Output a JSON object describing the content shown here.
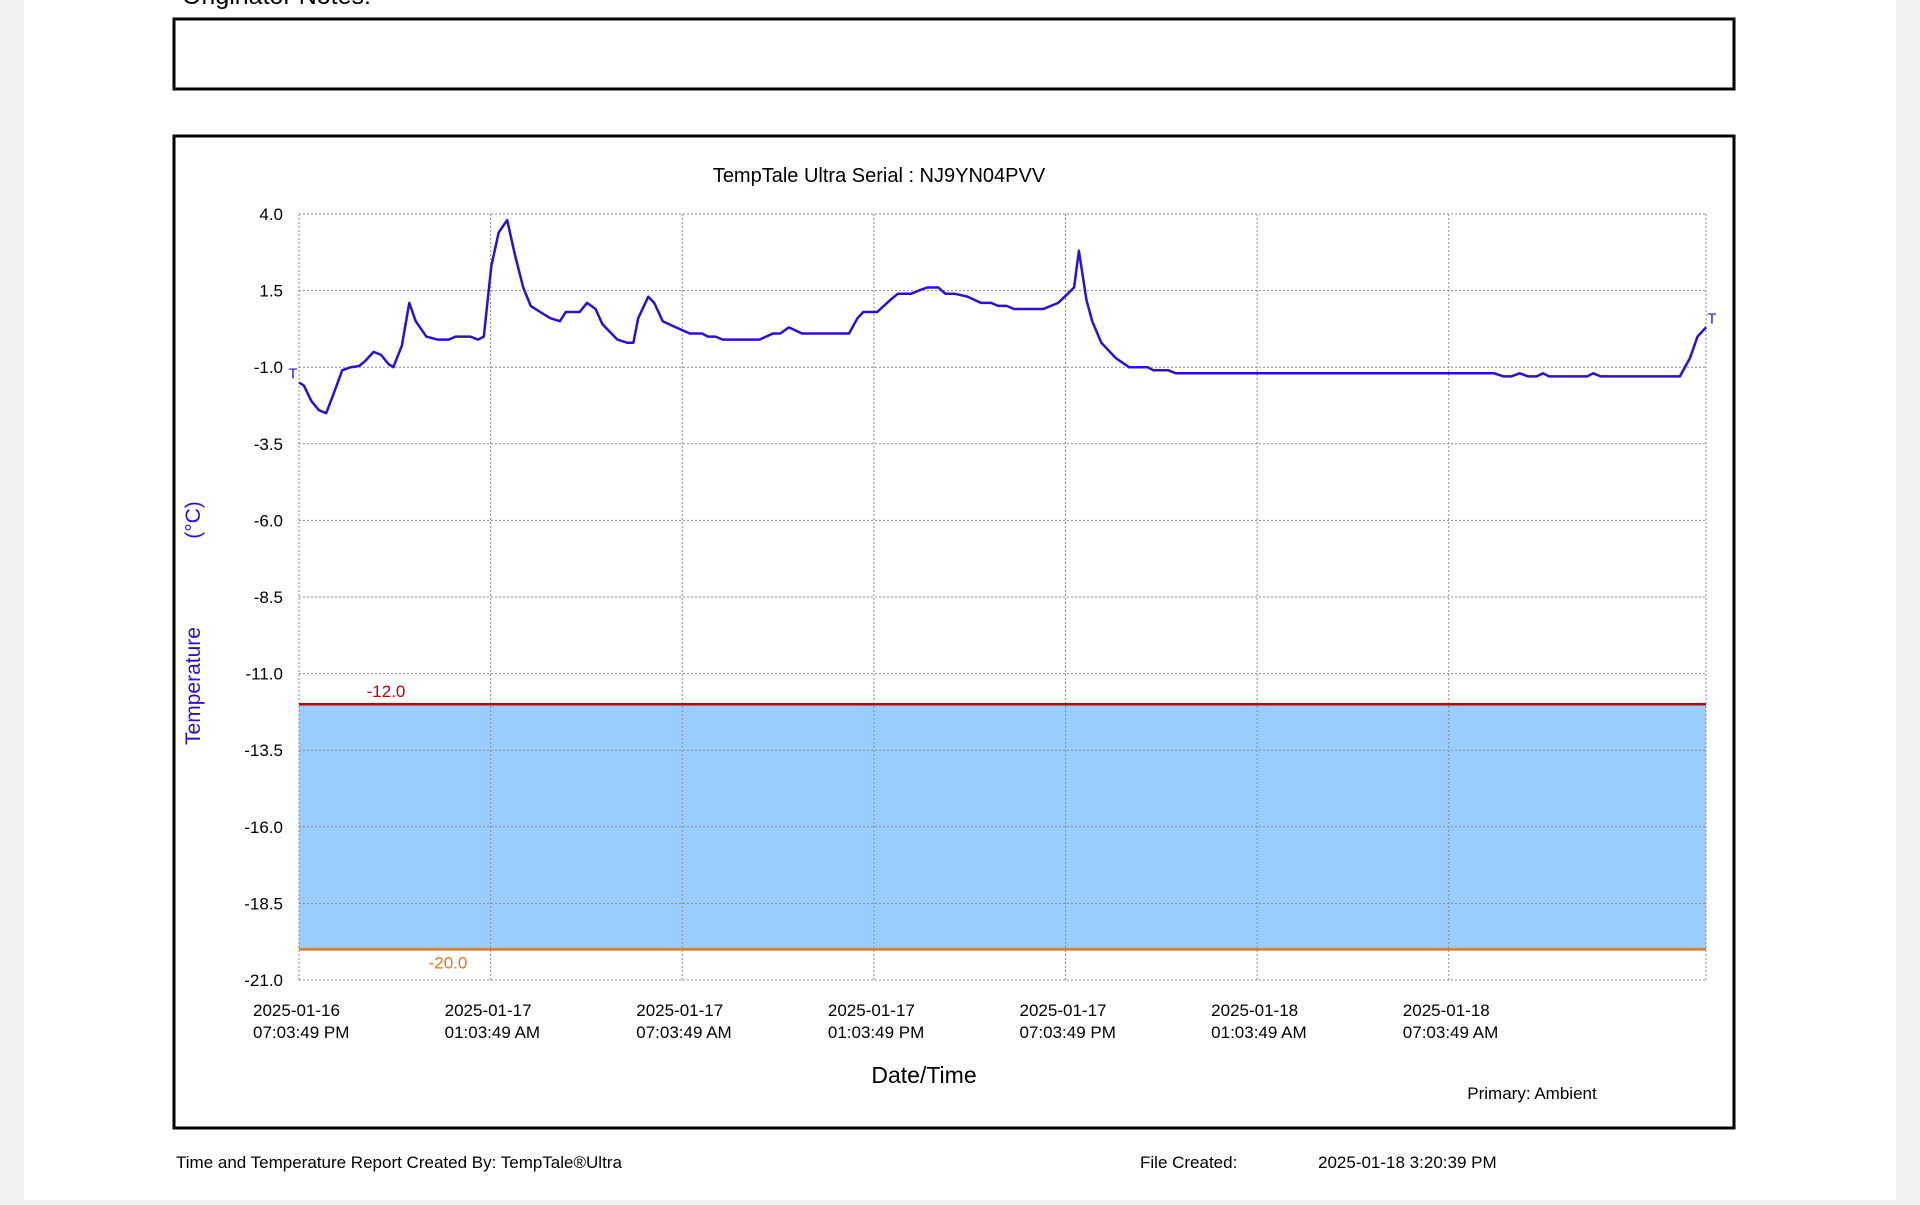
{
  "header": {
    "notes_label": "Originator Notes:"
  },
  "chart_data": {
    "type": "line",
    "title": "TempTale Ultra  Serial : NJ9YN04PVV",
    "y_label": "Temperature",
    "y_unit": "(°C)",
    "x_label": "Date/Time",
    "legend": "Primary: Ambient",
    "grid": true,
    "xlim": [
      "2025-01-16T19:03:49",
      "2025-01-18T15:07"
    ],
    "xticks": [
      {
        "value": "2025-01-16T19:03:49",
        "label": "2025-01-16 07:03:49 PM"
      },
      {
        "value": "2025-01-17T01:03:49",
        "label": "2025-01-17 01:03:49 AM"
      },
      {
        "value": "2025-01-17T07:03:49",
        "label": "2025-01-17 07:03:49 AM"
      },
      {
        "value": "2025-01-17T13:03:49",
        "label": "2025-01-17 01:03:49 PM"
      },
      {
        "value": "2025-01-17T19:03:49",
        "label": "2025-01-17 07:03:49 PM"
      },
      {
        "value": "2025-01-18T01:03:49",
        "label": "2025-01-18 01:03:49 AM"
      },
      {
        "value": "2025-01-18T07:03:49",
        "label": "2025-01-18 07:03:49 AM"
      }
    ],
    "ylim": [
      -21,
      4
    ],
    "yticks": [
      {
        "value": 4,
        "label": "4.0"
      },
      {
        "value": 1.5,
        "label": "1.5"
      },
      {
        "value": -1,
        "label": "-1.0"
      },
      {
        "value": -3.5,
        "label": "-3.5"
      },
      {
        "value": -6,
        "label": "-6.0"
      },
      {
        "value": -8.5,
        "label": "-8.5"
      },
      {
        "value": -11,
        "label": "-11.0"
      },
      {
        "value": -13.5,
        "label": "-13.5"
      },
      {
        "value": -16,
        "label": "-16.0"
      },
      {
        "value": -18.5,
        "label": "-18.5"
      },
      {
        "value": -21,
        "label": "-21.0"
      }
    ],
    "limits": [
      {
        "value": -12,
        "label": "-12.0",
        "color": "#c00000"
      },
      {
        "value": -20,
        "label": "-20.0",
        "color": "#e8761e"
      }
    ],
    "band_color": "#99ccff",
    "trip_markers": {
      "start": "T",
      "end": "T"
    },
    "series": [
      {
        "color": "#2b0fd6",
        "x": [
          "2025-01-16T19:03:49",
          "2025-01-16T19:13",
          "2025-01-16T19:27",
          "2025-01-16T19:41",
          "2025-01-16T19:55",
          "2025-01-16T20:08",
          "2025-01-16T20:25",
          "2025-01-16T20:41",
          "2025-01-16T20:57",
          "2025-01-16T21:08",
          "2025-01-16T21:24",
          "2025-01-16T21:38",
          "2025-01-16T21:52",
          "2025-01-16T22:01",
          "2025-01-16T22:17",
          "2025-01-16T22:31",
          "2025-01-16T22:43",
          "2025-01-16T23:03",
          "2025-01-16T23:24",
          "2025-01-16T23:45",
          "2025-01-16T23:58",
          "2025-01-17T00:26",
          "2025-01-17T00:40",
          "2025-01-17T00:51",
          "2025-01-17T01:05",
          "2025-01-17T01:19",
          "2025-01-17T01:35",
          "2025-01-17T01:49",
          "2025-01-17T02:05",
          "2025-01-17T02:19",
          "2025-01-17T02:37",
          "2025-01-17T02:56",
          "2025-01-17T03:14",
          "2025-01-17T03:25",
          "2025-01-17T03:51",
          "2025-01-17T04:05",
          "2025-01-17T04:21",
          "2025-01-17T04:34",
          "2025-01-17T05:02",
          "2025-01-17T05:20",
          "2025-01-17T05:32",
          "2025-01-17T05:41",
          "2025-01-17T06:00",
          "2025-01-17T06:11",
          "2025-01-17T06:27",
          "2025-01-17T06:52",
          "2025-01-17T07:18",
          "2025-01-17T07:41",
          "2025-01-17T07:52",
          "2025-01-17T08:06",
          "2025-01-17T08:20",
          "2025-01-17T09:29",
          "2025-01-17T09:54",
          "2025-01-17T10:08",
          "2025-01-17T10:24",
          "2025-01-17T10:49",
          "2025-01-17T12:17",
          "2025-01-17T12:33",
          "2025-01-17T12:44",
          "2025-01-17T13:10",
          "2025-01-17T13:35",
          "2025-01-17T13:49",
          "2025-01-17T14:14",
          "2025-01-17T14:28",
          "2025-01-17T14:44",
          "2025-01-17T15:05",
          "2025-01-17T15:18",
          "2025-01-17T15:35",
          "2025-01-17T16:00",
          "2025-01-17T16:25",
          "2025-01-17T16:44",
          "2025-01-17T16:57",
          "2025-01-17T17:13",
          "2025-01-17T17:27",
          "2025-01-17T18:22",
          "2025-01-17T18:50",
          "2025-01-17T19:08",
          "2025-01-17T19:20",
          "2025-01-17T19:29",
          "2025-01-17T19:43",
          "2025-01-17T19:54",
          "2025-01-17T20:11",
          "2025-01-17T20:38",
          "2025-01-17T21:03",
          "2025-01-17T21:38",
          "2025-01-17T21:49",
          "2025-01-17T22:17",
          "2025-01-17T22:31",
          "2025-01-18T08:29",
          "2025-01-18T08:47",
          "2025-01-18T09:01",
          "2025-01-18T09:17",
          "2025-01-18T09:33",
          "2025-01-18T09:49",
          "2025-01-18T10:01",
          "2025-01-18T10:12",
          "2025-01-18T11:24",
          "2025-01-18T11:35",
          "2025-01-18T11:49",
          "2025-01-18T14:18",
          "2025-01-18T14:37",
          "2025-01-18T14:51",
          "2025-01-18T15:07"
        ],
        "values": [
          -1.5,
          -1.6,
          -2.1,
          -2.4,
          -2.5,
          -1.9,
          -1.1,
          -1.0,
          -0.96,
          -0.8,
          -0.5,
          -0.6,
          -0.9,
          -1.0,
          -0.3,
          1.1,
          0.5,
          0.0,
          -0.1,
          -0.1,
          0.0,
          0.0,
          -0.1,
          0.0,
          2.3,
          3.4,
          3.8,
          2.7,
          1.6,
          1.0,
          0.8,
          0.6,
          0.5,
          0.8,
          0.8,
          1.1,
          0.9,
          0.4,
          -0.1,
          -0.2,
          -0.2,
          0.6,
          1.3,
          1.1,
          0.5,
          0.3,
          0.1,
          0.1,
          0.0,
          0.0,
          -0.1,
          -0.1,
          0.1,
          0.1,
          0.3,
          0.1,
          0.1,
          0.6,
          0.8,
          0.8,
          1.2,
          1.4,
          1.4,
          1.5,
          1.6,
          1.6,
          1.4,
          1.4,
          1.3,
          1.1,
          1.1,
          1.0,
          1.0,
          0.9,
          0.9,
          1.1,
          1.4,
          1.6,
          2.8,
          1.2,
          0.5,
          -0.2,
          -0.7,
          -1.0,
          -1.0,
          -1.1,
          -1.1,
          -1.2,
          -1.2,
          -1.3,
          -1.3,
          -1.2,
          -1.3,
          -1.3,
          -1.2,
          -1.3,
          -1.3,
          -1.2,
          -1.3,
          -1.3,
          -0.7,
          0.0,
          0.3
        ]
      }
    ]
  },
  "footer": {
    "created_by": "Time and Temperature Report Created By:  TempTale®Ultra",
    "file_created_label": "File Created:",
    "file_created": "2025-01-18  3:20:39 PM"
  }
}
